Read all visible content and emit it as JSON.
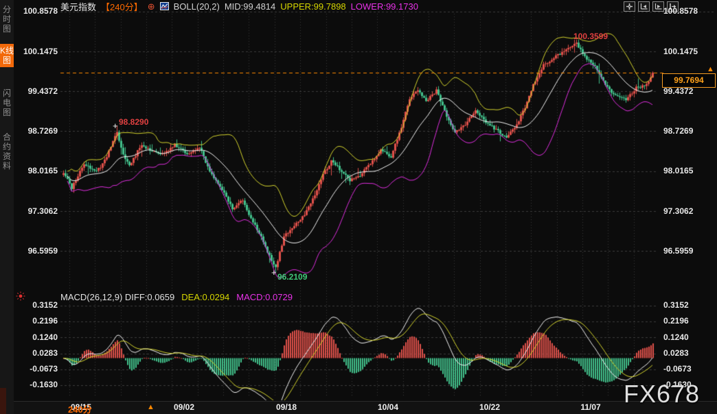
{
  "header": {
    "symbol": "美元指数",
    "period": "【240分】",
    "link_icon": "⊕",
    "boll": "BOLL(20,2)",
    "mid": "MID:99.4814",
    "upper": "UPPER:99.7898",
    "lower": "LOWER:99.1730"
  },
  "toolbar": {
    "icons": [
      "crosshair",
      "scroll-chart-left",
      "scroll-chart-right",
      "exit-chart"
    ]
  },
  "sidebar": {
    "tabs": [
      {
        "label": "分时图",
        "active": false
      },
      {
        "label": "K线图",
        "active": true
      },
      {
        "label": "闪电图",
        "active": false
      },
      {
        "label": "合约资料",
        "active": false
      }
    ]
  },
  "axis": {
    "price": [
      "100.8578",
      "100.1475",
      "99.4372",
      "98.7269",
      "98.0165",
      "97.3062",
      "96.5959"
    ],
    "macd": [
      "0.3152",
      "0.2196",
      "0.1240",
      "0.0283",
      "-0.0673",
      "-0.1630"
    ],
    "time": [
      "08/15",
      "09/02",
      "09/18",
      "10/04",
      "10/22",
      "11/07"
    ]
  },
  "annotations": {
    "swing_high": "98.8290",
    "peak_high": "100.3599",
    "swing_low": "96.2109",
    "last_price": "99.7694",
    "cross": "+"
  },
  "macd_panel": {
    "title": "MACD(26,12,9) DIFF:0.0659",
    "dea": "DEA:0.0294",
    "macd": "MACD:0.0729"
  },
  "footer": {
    "period": "240分",
    "dropdown_arrow": "▲"
  },
  "watermark": "FX678",
  "colors": {
    "up": "#e0504a",
    "down": "#42c08b",
    "boll_upper": "#d6d62e",
    "boll_mid": "#f5f5f5",
    "boll_lower": "#e02ee0",
    "accent_orange": "#ff6a00",
    "price_line": "#ff8800",
    "grid": "#3c3c3c",
    "annotation_red": "#e04040",
    "annotation_green": "#3fc878"
  },
  "chart_data": {
    "type": "candlestick",
    "title": "美元指数 240分 K线图 + BOLL(20,2) + MACD(26,12,9)",
    "price_range": [
      100.8578,
      96.5959
    ],
    "macd_range": [
      0.3152,
      -0.163
    ],
    "price_ticks": [
      100.8578,
      100.1475,
      99.4372,
      98.7269,
      98.0165,
      97.3062,
      96.5959
    ],
    "macd_ticks": [
      0.3152,
      0.2196,
      0.124,
      0.0283,
      -0.0673,
      -0.163
    ],
    "x_labels": [
      "08/15",
      "09/02",
      "09/18",
      "10/04",
      "10/22",
      "11/07"
    ],
    "n_candles": 287,
    "keypoints": [
      [
        0,
        98.0
      ],
      [
        4,
        97.72
      ],
      [
        10,
        98.15
      ],
      [
        16,
        98.0
      ],
      [
        20,
        98.2
      ],
      [
        26,
        98.72
      ],
      [
        29,
        98.3
      ],
      [
        32,
        98.1
      ],
      [
        38,
        98.5
      ],
      [
        42,
        98.38
      ],
      [
        48,
        98.32
      ],
      [
        54,
        98.48
      ],
      [
        60,
        98.33
      ],
      [
        66,
        98.45
      ],
      [
        71,
        98.0
      ],
      [
        76,
        97.75
      ],
      [
        82,
        97.35
      ],
      [
        87,
        97.5
      ],
      [
        92,
        97.1
      ],
      [
        96,
        96.85
      ],
      [
        100,
        96.5
      ],
      [
        103,
        96.3
      ],
      [
        107,
        96.85
      ],
      [
        112,
        97.05
      ],
      [
        117,
        97.25
      ],
      [
        122,
        97.6
      ],
      [
        126,
        97.95
      ],
      [
        130,
        98.2
      ],
      [
        134,
        98.05
      ],
      [
        139,
        97.85
      ],
      [
        144,
        97.95
      ],
      [
        149,
        98.15
      ],
      [
        154,
        98.4
      ],
      [
        159,
        98.28
      ],
      [
        164,
        98.8
      ],
      [
        168,
        99.3
      ],
      [
        172,
        99.45
      ],
      [
        176,
        99.25
      ],
      [
        181,
        99.45
      ],
      [
        186,
        99.0
      ],
      [
        190,
        98.7
      ],
      [
        195,
        98.85
      ],
      [
        200,
        99.1
      ],
      [
        205,
        98.9
      ],
      [
        210,
        98.75
      ],
      [
        215,
        98.62
      ],
      [
        220,
        98.85
      ],
      [
        224,
        99.15
      ],
      [
        228,
        99.55
      ],
      [
        233,
        99.9
      ],
      [
        238,
        100.05
      ],
      [
        243,
        100.15
      ],
      [
        249,
        100.3
      ],
      [
        253,
        100.05
      ],
      [
        258,
        99.9
      ],
      [
        263,
        99.55
      ],
      [
        268,
        99.35
      ],
      [
        273,
        99.3
      ],
      [
        278,
        99.5
      ],
      [
        283,
        99.55
      ],
      [
        286,
        99.75
      ]
    ],
    "boll": {
      "window": 20,
      "mult": 2,
      "mid": 99.4814,
      "upper": 99.7898,
      "lower": 99.173
    },
    "markers": {
      "swing_high": {
        "index": 26,
        "price": 98.829
      },
      "peak_high": {
        "index": 249,
        "price": 100.3599
      },
      "swing_low": {
        "index": 103,
        "price": 96.2109
      }
    },
    "last_price": 99.7694,
    "indicator": {
      "name": "MACD",
      "params": [
        26,
        12,
        9
      ],
      "diff": 0.0659,
      "dea": 0.0294,
      "macd": 0.0729
    }
  }
}
